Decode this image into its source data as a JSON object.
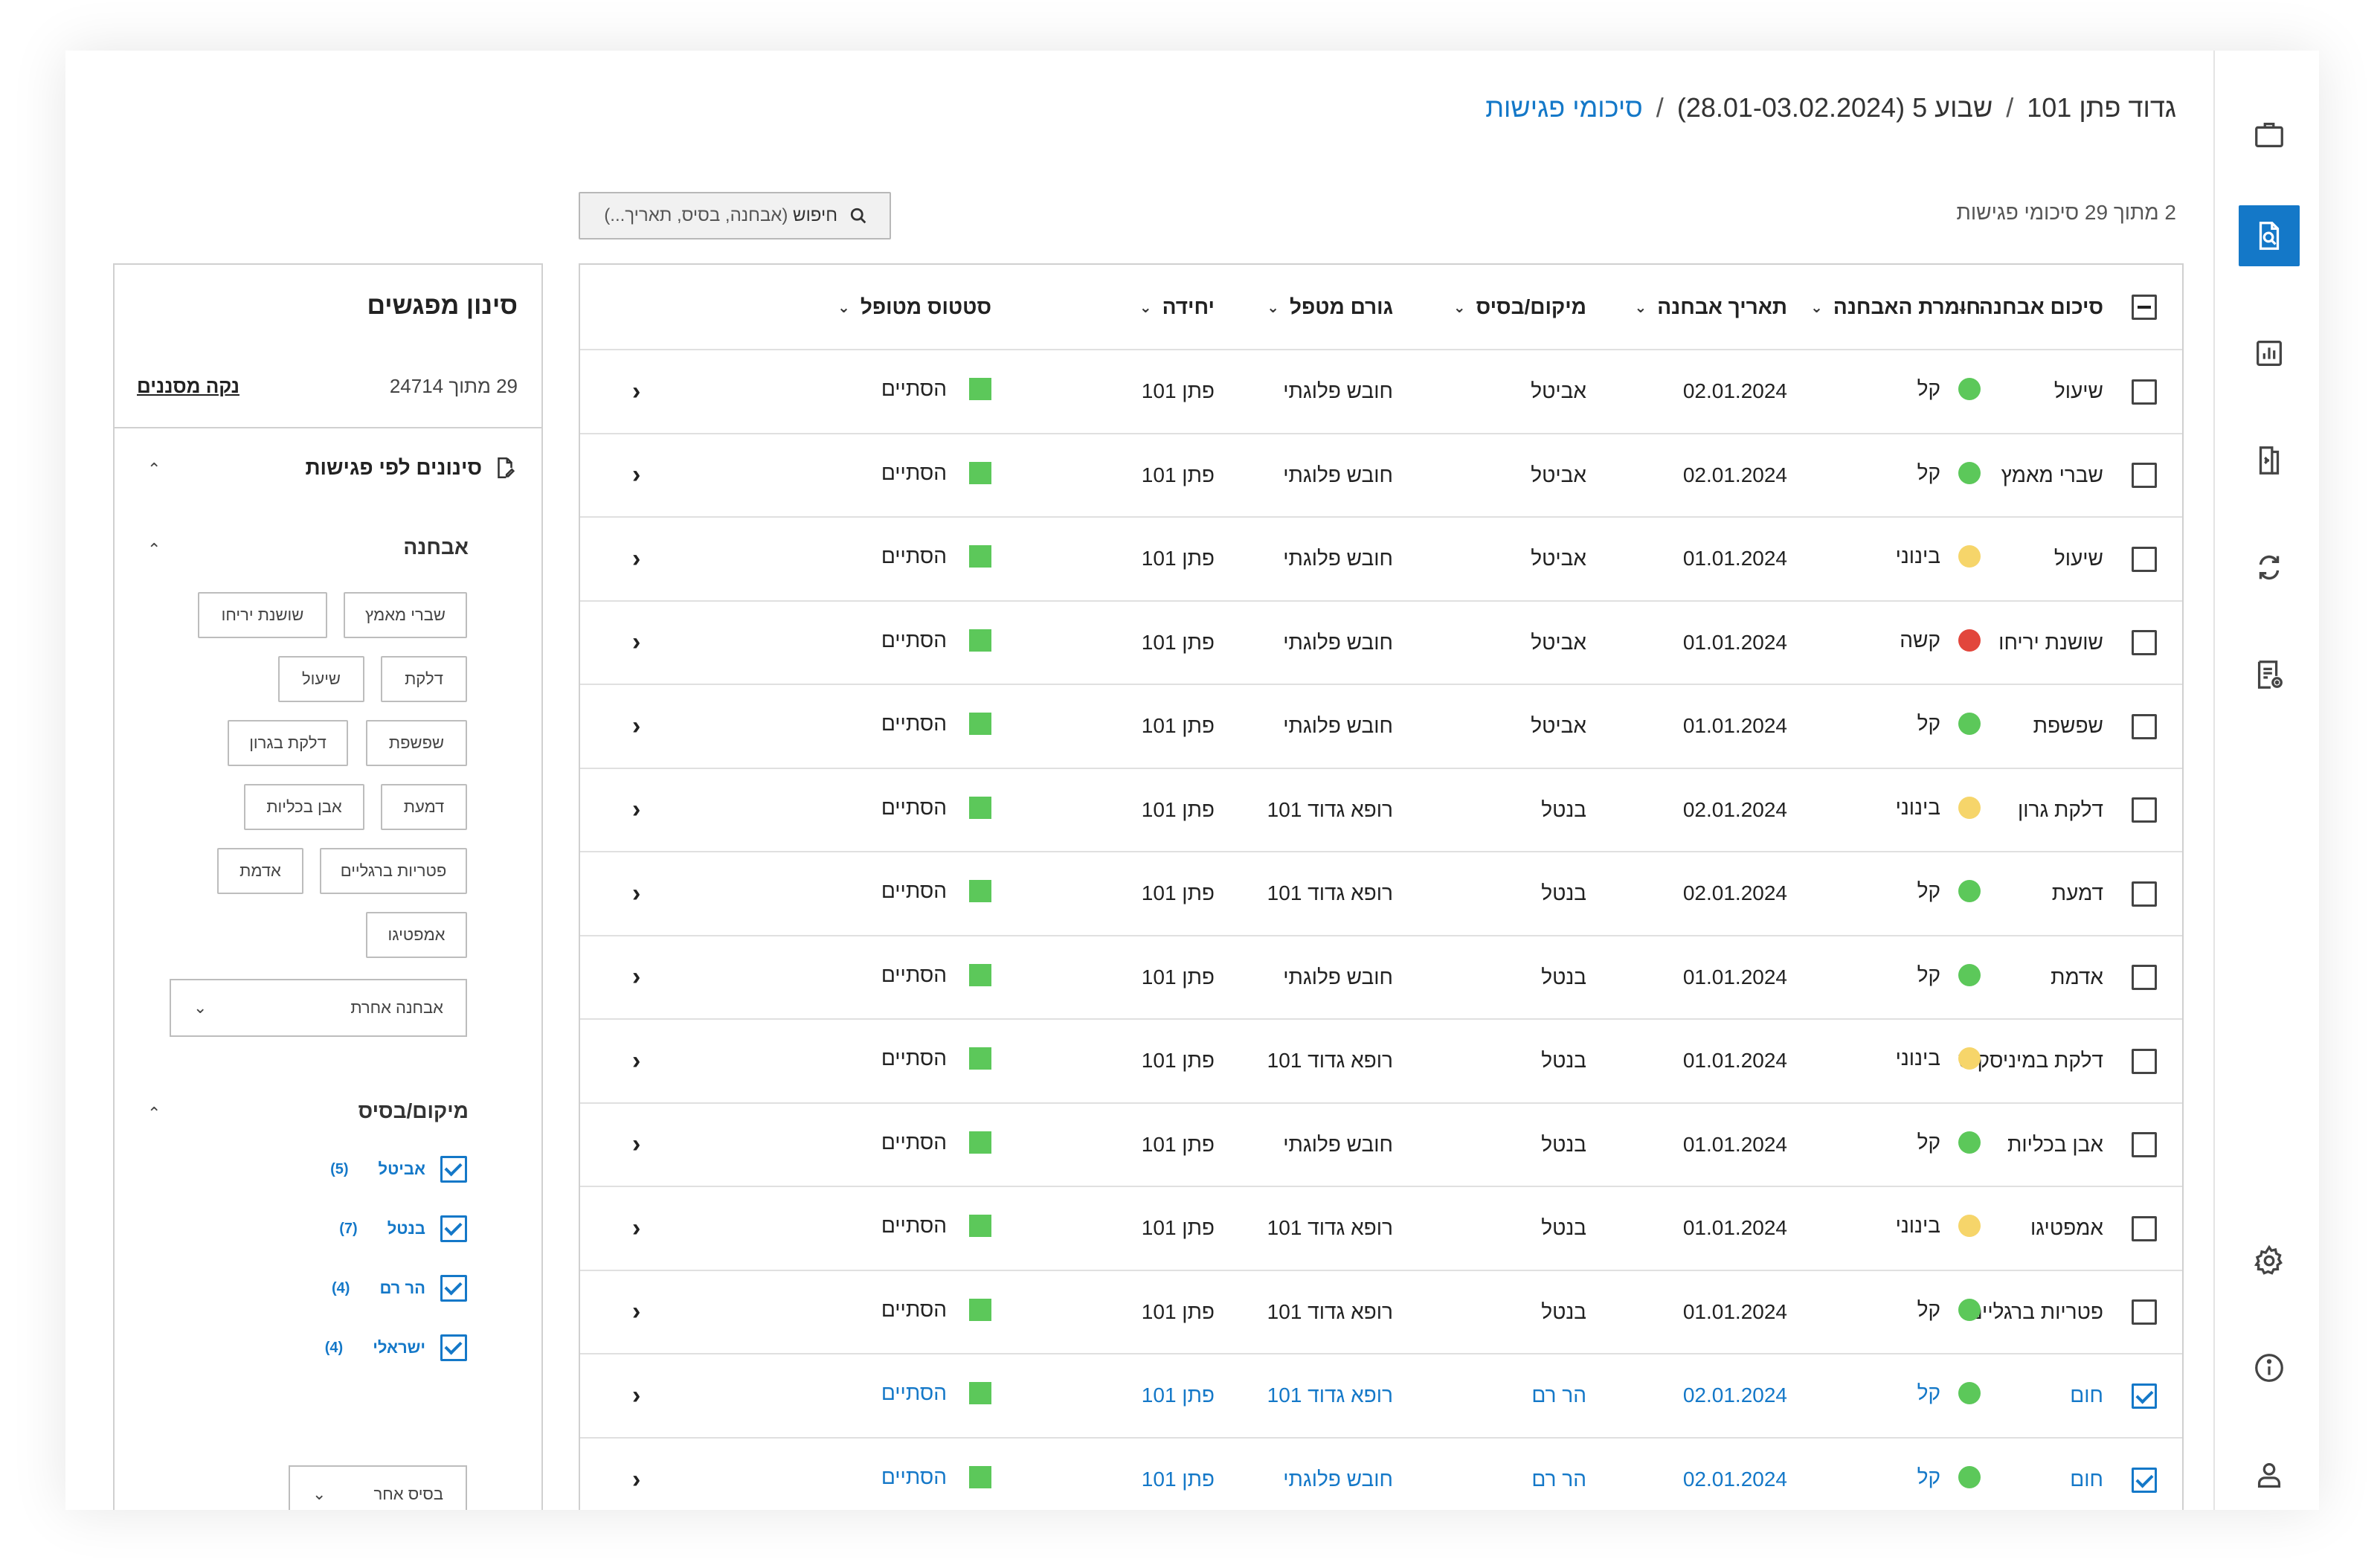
{
  "breadcrumb": {
    "unit": "גדוד פתן 101",
    "week": "שבוע 5 (28.01-03.02.2024)",
    "current": "סיכומי פגישות"
  },
  "summary_count": "2 מתוך 29 סיכומי פגישות",
  "search": {
    "label": "חיפוש",
    "hint": "(אבחנה, בסיס, תאריך...)"
  },
  "table": {
    "headers": {
      "summary": "סיכום אבחנה",
      "severity": "חומרת האבחנה",
      "date": "תאריך אבחנה",
      "location": "מיקום/בסיס",
      "agent": "גורם מטפל",
      "unit": "יחידה",
      "status": "סטטוס מטופל"
    },
    "rows": [
      {
        "summary": "שיעול",
        "severity": "קל",
        "date": "02.01.2024",
        "location": "אביטל",
        "agent": "חובש פלוגתי",
        "unit": "פתן 101",
        "status": "הסתיים"
      },
      {
        "summary": "שברי מאמץ",
        "severity": "קל",
        "date": "02.01.2024",
        "location": "אביטל",
        "agent": "חובש פלוגתי",
        "unit": "פתן 101",
        "status": "הסתיים"
      },
      {
        "summary": "שיעול",
        "severity": "בינוני",
        "date": "01.01.2024",
        "location": "אביטל",
        "agent": "חובש פלוגתי",
        "unit": "פתן 101",
        "status": "הסתיים"
      },
      {
        "summary": "שושנת יריחו",
        "severity": "קשה",
        "date": "01.01.2024",
        "location": "אביטל",
        "agent": "חובש פלוגתי",
        "unit": "פתן 101",
        "status": "הסתיים"
      },
      {
        "summary": "שפשפת",
        "severity": "קל",
        "date": "01.01.2024",
        "location": "אביטל",
        "agent": "חובש פלוגתי",
        "unit": "פתן 101",
        "status": "הסתיים"
      },
      {
        "summary": "דלקת גרון",
        "severity": "בינוני",
        "date": "02.01.2024",
        "location": "בנטל",
        "agent": "רופא גדוד 101",
        "unit": "פתן 101",
        "status": "הסתיים"
      },
      {
        "summary": "דמעת",
        "severity": "קל",
        "date": "02.01.2024",
        "location": "בנטל",
        "agent": "רופא גדוד 101",
        "unit": "פתן 101",
        "status": "הסתיים"
      },
      {
        "summary": "אדמת",
        "severity": "קל",
        "date": "01.01.2024",
        "location": "בנטל",
        "agent": "חובש פלוגתי",
        "unit": "פתן 101",
        "status": "הסתיים"
      },
      {
        "summary": "דלקת במיניסקוס",
        "severity": "בינוני",
        "date": "01.01.2024",
        "location": "בנטל",
        "agent": "רופא גדוד 101",
        "unit": "פתן 101",
        "status": "הסתיים"
      },
      {
        "summary": "אבן בכליות",
        "severity": "קל",
        "date": "01.01.2024",
        "location": "בנטל",
        "agent": "חובש פלוגתי",
        "unit": "פתן 101",
        "status": "הסתיים"
      },
      {
        "summary": "אמפטיגו",
        "severity": "בינוני",
        "date": "01.01.2024",
        "location": "בנטל",
        "agent": "רופא גדוד 101",
        "unit": "פתן 101",
        "status": "הסתיים"
      },
      {
        "summary": "פטריות ברגליים",
        "severity": "קל",
        "date": "01.01.2024",
        "location": "בנטל",
        "agent": "רופא גדוד 101",
        "unit": "פתן 101",
        "status": "הסתיים"
      },
      {
        "summary": "חום",
        "severity": "קל",
        "date": "02.01.2024",
        "location": "הר רם",
        "agent": "רופא גדוד 101",
        "unit": "פתן 101",
        "status": "הסתיים",
        "selected": true
      },
      {
        "summary": "חום",
        "severity": "קל",
        "date": "02.01.2024",
        "location": "הר רם",
        "agent": "חובש פלוגתי",
        "unit": "פתן 101",
        "status": "הסתיים",
        "selected": true
      }
    ]
  },
  "filter": {
    "title": "סינון מפגשים",
    "count": "29 מתוך 24714",
    "clear": "נקה מסננים",
    "section": "סינונים לפי פגישות",
    "diagnosis_head": "אבחנה",
    "tags": [
      "שברי מאמץ",
      "שושנת יריחו",
      "דלקת",
      "שיעול",
      "שפשפת",
      "דלקת בגרון",
      "דמעת",
      "אבן בכליות",
      "פטריות ברגליים",
      "אדמת",
      "אמפטיגו"
    ],
    "other_diagnosis": "אבחנה אחרת",
    "location_head": "מיקום/בסיס",
    "locations": [
      {
        "label": "אביטל",
        "count": "(5)"
      },
      {
        "label": "בנטל",
        "count": "(7)"
      },
      {
        "label": "הר רם",
        "count": "(4)"
      },
      {
        "label": "ישראלי",
        "count": "(4)"
      }
    ],
    "other_base": "בסיס אחר"
  },
  "colors": {
    "accent": "#1478c8",
    "mild": "#5cc85a",
    "medium": "#f6d56a",
    "severe": "#e2463c",
    "status": "#5cc85a"
  },
  "icons": [
    "briefcase-icon",
    "document-search-icon",
    "chart-icon",
    "document-transfer-icon",
    "sync-icon",
    "report-icon",
    "gear-icon",
    "info-icon",
    "user-icon"
  ]
}
